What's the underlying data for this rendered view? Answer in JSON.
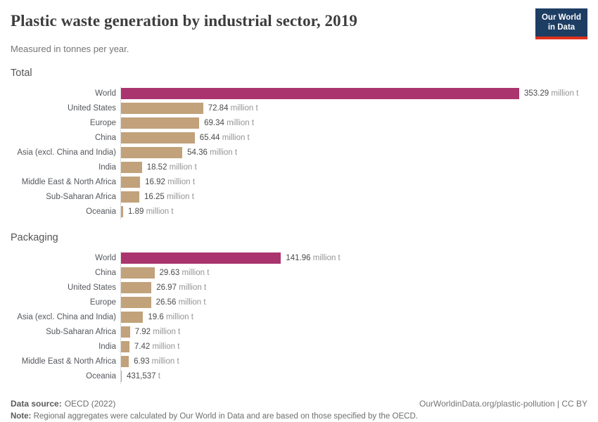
{
  "header": {
    "title": "Plastic waste generation by industrial sector, 2019",
    "subtitle": "Measured in tonnes per year.",
    "logo": {
      "line1": "Our World",
      "line2": "in Data"
    }
  },
  "colors": {
    "world_bar": "#aa346e",
    "region_bar": "#c1a27b",
    "logo_bg": "#1d3d63",
    "logo_stripe": "#e0301c",
    "axis_line": "#dcdcdc"
  },
  "chart_data": [
    {
      "type": "bar",
      "facet": "Total",
      "xlabel": "",
      "ylabel": "",
      "xlim": [
        0,
        353.29
      ],
      "unit": "million tonnes per year",
      "rows": [
        {
          "entity": "World",
          "value": 353.29,
          "value_label": "353.29",
          "unit_label": "million t",
          "highlight": true
        },
        {
          "entity": "United States",
          "value": 72.84,
          "value_label": "72.84",
          "unit_label": "million t",
          "highlight": false
        },
        {
          "entity": "Europe",
          "value": 69.34,
          "value_label": "69.34",
          "unit_label": "million t",
          "highlight": false
        },
        {
          "entity": "China",
          "value": 65.44,
          "value_label": "65.44",
          "unit_label": "million t",
          "highlight": false
        },
        {
          "entity": "Asia (excl. China and India)",
          "value": 54.36,
          "value_label": "54.36",
          "unit_label": "million t",
          "highlight": false
        },
        {
          "entity": "India",
          "value": 18.52,
          "value_label": "18.52",
          "unit_label": "million t",
          "highlight": false
        },
        {
          "entity": "Middle East & North Africa",
          "value": 16.92,
          "value_label": "16.92",
          "unit_label": "million t",
          "highlight": false
        },
        {
          "entity": "Sub-Saharan Africa",
          "value": 16.25,
          "value_label": "16.25",
          "unit_label": "million t",
          "highlight": false
        },
        {
          "entity": "Oceania",
          "value": 1.89,
          "value_label": "1.89",
          "unit_label": "million t",
          "highlight": false
        }
      ]
    },
    {
      "type": "bar",
      "facet": "Packaging",
      "xlabel": "",
      "ylabel": "",
      "xlim": [
        0,
        353.29
      ],
      "unit": "million tonnes per year",
      "rows": [
        {
          "entity": "World",
          "value": 141.96,
          "value_label": "141.96",
          "unit_label": "million t",
          "highlight": true
        },
        {
          "entity": "China",
          "value": 29.63,
          "value_label": "29.63",
          "unit_label": "million t",
          "highlight": false
        },
        {
          "entity": "United States",
          "value": 26.97,
          "value_label": "26.97",
          "unit_label": "million t",
          "highlight": false
        },
        {
          "entity": "Europe",
          "value": 26.56,
          "value_label": "26.56",
          "unit_label": "million t",
          "highlight": false
        },
        {
          "entity": "Asia (excl. China and India)",
          "value": 19.6,
          "value_label": "19.6",
          "unit_label": "million t",
          "highlight": false
        },
        {
          "entity": "Sub-Saharan Africa",
          "value": 7.92,
          "value_label": "7.92",
          "unit_label": "million t",
          "highlight": false
        },
        {
          "entity": "India",
          "value": 7.42,
          "value_label": "7.42",
          "unit_label": "million t",
          "highlight": false
        },
        {
          "entity": "Middle East & North Africa",
          "value": 6.93,
          "value_label": "6.93",
          "unit_label": "million t",
          "highlight": false
        },
        {
          "entity": "Oceania",
          "value": 0.431537,
          "value_label": "431,537",
          "unit_label": "t",
          "highlight": false
        }
      ]
    }
  ],
  "footer": {
    "datasource_label": "Data source:",
    "datasource": "OECD (2022)",
    "link": "OurWorldinData.org/plastic-pollution | CC BY",
    "note_label": "Note:",
    "note": "Regional aggregates were calculated by Our World in Data and are based on those specified by the OECD."
  }
}
